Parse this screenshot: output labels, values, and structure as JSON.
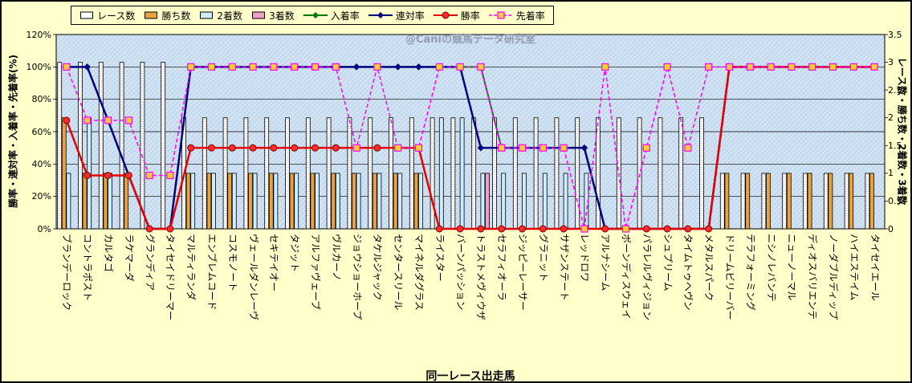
{
  "watermark": "@Caniの競馬データ研究室",
  "axes": {
    "left_title": "勝率・連対率・入着率・先着率(%)",
    "right_title": "レース数・勝ち数・2着数・3着数",
    "x_title": "同一レース出走馬",
    "left_ticks": [
      "0%",
      "20%",
      "40%",
      "60%",
      "80%",
      "100%",
      "120%"
    ],
    "right_ticks": [
      "0",
      "0.5",
      "1",
      "1.5",
      "2",
      "2.5",
      "3",
      "3.5"
    ]
  },
  "legend": [
    {
      "key": "races",
      "label": "レース数",
      "type": "bar",
      "color": "#FFFFFF"
    },
    {
      "key": "wins",
      "label": "勝ち数",
      "type": "bar",
      "color": "#E8A33C"
    },
    {
      "key": "seconds",
      "label": "2着数",
      "type": "bar",
      "color": "#CCECFF"
    },
    {
      "key": "thirds",
      "label": "3着数",
      "type": "bar",
      "color": "#F0A0C8"
    },
    {
      "key": "top3-rate",
      "label": "入着率",
      "type": "line",
      "marker": "diamond",
      "color": "#007A00"
    },
    {
      "key": "quinella-rate",
      "label": "連対率",
      "type": "line",
      "marker": "diamond",
      "color": "#000080"
    },
    {
      "key": "win-rate",
      "label": "勝率",
      "type": "line",
      "marker": "circle",
      "color": "#E80000"
    },
    {
      "key": "precede-rate",
      "label": "先着率",
      "type": "dash",
      "marker": "square",
      "color": "#FF00FF"
    }
  ],
  "colors": {
    "background": "#FFFFCC",
    "plot_fill": "#C3D9EE",
    "grid": "#000000",
    "watermark": "#8A90A8",
    "marker_square_fill": "#FFCC33"
  },
  "chart_data": {
    "type": "combo-bar-line",
    "x_title": "同一レース出走馬",
    "left_axis": {
      "title": "勝率・連対率・入着率・先着率(%)",
      "min": 0,
      "max": 120,
      "unit": "%",
      "gridline_step": 20
    },
    "right_axis": {
      "title": "レース数・勝ち数・2着数・3着数",
      "min": 0,
      "max": 3.5,
      "tick_step": 0.5
    },
    "grid": "horizontal-only",
    "legend_position": "top",
    "categories": [
      "ブランデーロック",
      "コントラポスト",
      "カルタゴ",
      "ラケマーダ",
      "グランディア",
      "タイセイドリーマー",
      "マルティランダ",
      "エンブレムコード",
      "コスモノート",
      "ヴェールダンレーヴ",
      "セキテイオー",
      "タジット",
      "アルファヴェーブ",
      "ヴルカーノ",
      "ジョウショーホープ",
      "タケルジャック",
      "センタースリール",
      "マイネルダグラス",
      "ライスター",
      "バーンパッション",
      "トラストメヴィウザ",
      "セラフィオーラ",
      "ジッピーレーサー",
      "グラニット",
      "サザンステート",
      "レッドロワ",
      "アルナシーム",
      "ボーンディスウェイ",
      "パラレルヴィジョン",
      "シュプリーム",
      "タイムトゥヘヴン",
      "メタルスパーク",
      "ドリームビリーバー",
      "テラフォーミング",
      "ニシノレバンテ",
      "ニューノーマル",
      "ディオスバリエンテ",
      "ノーダブルディップ",
      "ハイエステイム",
      "タイセイエール"
    ],
    "bar_series": [
      {
        "key": "races",
        "name": "レース数",
        "axis": "right",
        "color": "#FFFFFF",
        "values": [
          3,
          3,
          3,
          3,
          3,
          3,
          2,
          2,
          2,
          2,
          2,
          2,
          2,
          2,
          2,
          2,
          2,
          2,
          2,
          2,
          2,
          2,
          2,
          2,
          2,
          2,
          2,
          2,
          2,
          2,
          2,
          2,
          1,
          1,
          1,
          1,
          1,
          1,
          1,
          1
        ]
      },
      {
        "key": "wins",
        "name": "勝ち数",
        "axis": "right",
        "color": "#E8A33C",
        "values": [
          2,
          1,
          1,
          1,
          0,
          0,
          1,
          1,
          1,
          1,
          1,
          1,
          1,
          1,
          1,
          1,
          1,
          1,
          0,
          0,
          0,
          0,
          0,
          0,
          0,
          0,
          0,
          0,
          0,
          0,
          0,
          0,
          1,
          1,
          1,
          1,
          1,
          1,
          1,
          1
        ]
      },
      {
        "key": "seconds",
        "name": "2着数",
        "axis": "right",
        "color": "#CCECFF",
        "values": [
          1,
          2,
          1,
          0,
          0,
          0,
          1,
          1,
          1,
          1,
          1,
          1,
          1,
          1,
          1,
          1,
          1,
          1,
          2,
          2,
          1,
          1,
          1,
          1,
          1,
          1,
          0,
          0,
          0,
          0,
          0,
          0,
          0,
          0,
          0,
          0,
          0,
          0,
          0,
          0
        ]
      },
      {
        "key": "thirds",
        "name": "3着数",
        "axis": "right",
        "color": "#F0A0C8",
        "values": [
          0,
          0,
          0,
          0,
          0,
          0,
          0,
          0,
          0,
          0,
          0,
          0,
          0,
          0,
          0,
          0,
          0,
          0,
          0,
          0,
          1,
          0,
          0,
          0,
          0,
          0,
          0,
          0,
          0,
          0,
          0,
          0,
          0,
          0,
          0,
          0,
          0,
          0,
          0,
          0
        ]
      }
    ],
    "line_series": [
      {
        "key": "top3-rate",
        "name": "入着率",
        "axis": "left",
        "color": "#007A00",
        "marker": "diamond",
        "width": 2,
        "values": [
          100,
          100,
          67,
          33,
          0,
          0,
          100,
          100,
          100,
          100,
          100,
          100,
          100,
          100,
          100,
          100,
          100,
          100,
          100,
          100,
          100,
          50,
          50,
          50,
          50,
          50,
          0,
          0,
          0,
          0,
          0,
          0,
          100,
          100,
          100,
          100,
          100,
          100,
          100,
          100
        ]
      },
      {
        "key": "quinella-rate",
        "name": "連対率",
        "axis": "left",
        "color": "#000080",
        "marker": "diamond",
        "width": 2.5,
        "values": [
          100,
          100,
          67,
          33,
          0,
          0,
          100,
          100,
          100,
          100,
          100,
          100,
          100,
          100,
          100,
          100,
          100,
          100,
          100,
          100,
          50,
          50,
          50,
          50,
          50,
          50,
          0,
          0,
          0,
          0,
          0,
          0,
          100,
          100,
          100,
          100,
          100,
          100,
          100,
          100
        ]
      },
      {
        "key": "win-rate",
        "name": "勝率",
        "axis": "left",
        "color": "#E80000",
        "marker": "circle",
        "marker_fill": "#FF2A2A",
        "marker_stroke": "#7A0000",
        "width": 2.5,
        "values": [
          67,
          33,
          33,
          33,
          0,
          0,
          50,
          50,
          50,
          50,
          50,
          50,
          50,
          50,
          50,
          50,
          50,
          50,
          0,
          0,
          0,
          0,
          0,
          0,
          0,
          0,
          0,
          0,
          0,
          0,
          0,
          0,
          100,
          100,
          100,
          100,
          100,
          100,
          100,
          100
        ]
      },
      {
        "key": "precede-rate",
        "name": "先着率",
        "axis": "left",
        "color": "#FF00FF",
        "marker": "square",
        "marker_fill": "#FFCC33",
        "marker_stroke": "#FF00FF",
        "dash": "5,3",
        "width": 1.5,
        "values": [
          100,
          67,
          67,
          67,
          33,
          33,
          100,
          100,
          100,
          100,
          100,
          100,
          100,
          100,
          50,
          100,
          50,
          50,
          100,
          100,
          100,
          50,
          50,
          50,
          50,
          0,
          100,
          0,
          50,
          100,
          50,
          100,
          100,
          100,
          100,
          100,
          100,
          100,
          100,
          100
        ]
      }
    ]
  }
}
